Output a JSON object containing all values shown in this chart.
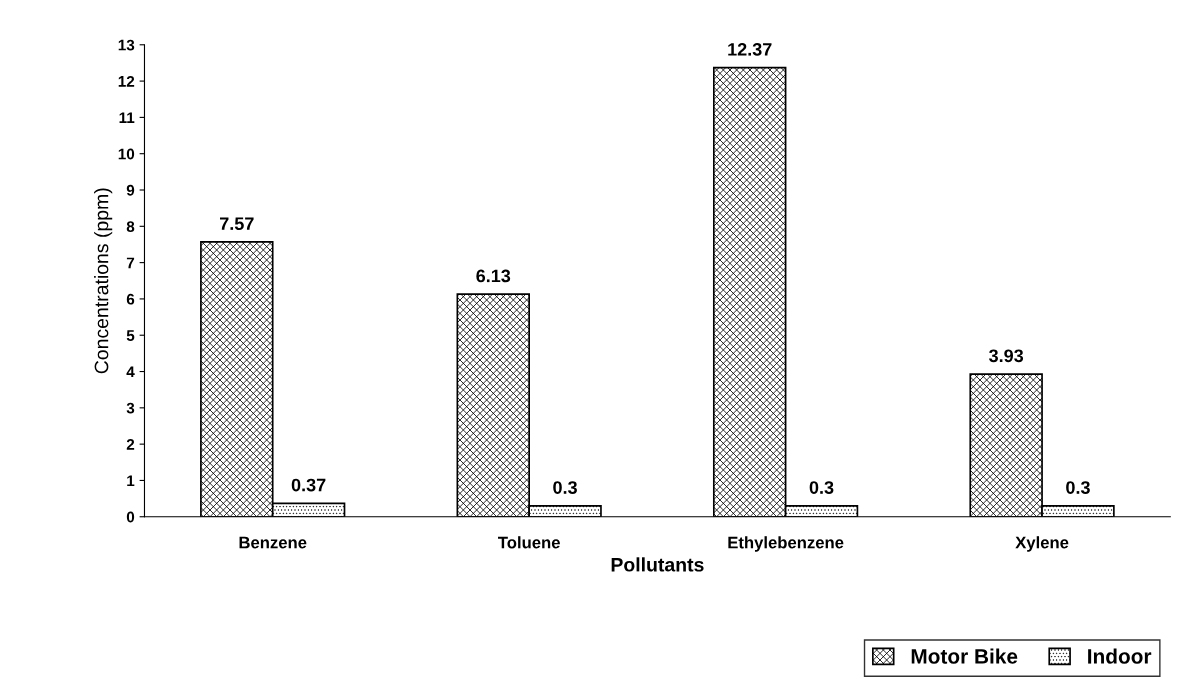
{
  "chart_data": {
    "type": "bar",
    "xlabel": "Pollutants",
    "ylabel": "Concentrations (ppm)",
    "categories": [
      "Benzene",
      "Toluene",
      "Ethylebenzene",
      "Xylene"
    ],
    "series": [
      {
        "name": "Motor Bike",
        "color": "#000000",
        "values": [
          7.57,
          6.13,
          12.37,
          3.93
        ]
      },
      {
        "name": "Indoor",
        "color": "#000000",
        "values": [
          0.37,
          0.3,
          0.3,
          0.3
        ]
      }
    ],
    "ylim": [
      0,
      13
    ],
    "yticks": [
      0,
      1,
      2,
      3,
      4,
      5,
      6,
      7,
      8,
      9,
      10,
      11,
      12,
      13
    ],
    "data_labels": true,
    "grid": false,
    "legend": "bottom right"
  }
}
